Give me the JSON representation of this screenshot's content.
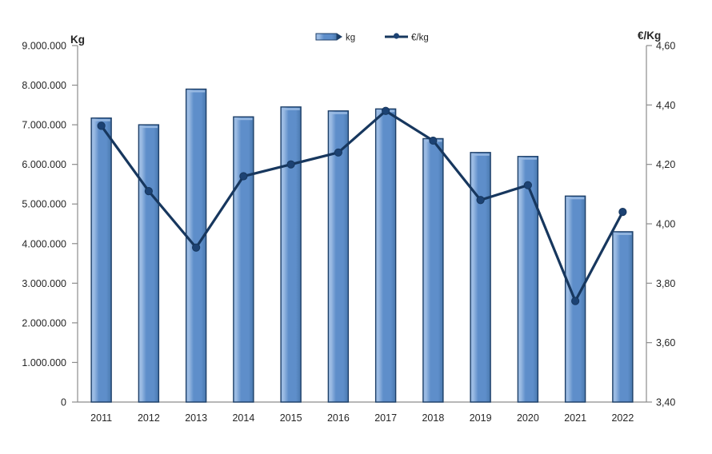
{
  "chart_data": {
    "type": "bar+line",
    "categories": [
      "2011",
      "2012",
      "2013",
      "2014",
      "2015",
      "2016",
      "2017",
      "2018",
      "2019",
      "2020",
      "2021",
      "2022"
    ],
    "series": [
      {
        "name": "kg",
        "type": "bar",
        "axis": "left",
        "values": [
          7170000,
          7000000,
          7900000,
          7200000,
          7450000,
          7350000,
          7400000,
          6650000,
          6300000,
          6200000,
          5200000,
          4300000
        ]
      },
      {
        "name": "€/kg",
        "type": "line",
        "axis": "right",
        "values": [
          4.33,
          4.11,
          3.92,
          4.16,
          4.2,
          4.24,
          4.38,
          4.28,
          4.08,
          4.13,
          3.74,
          4.04
        ]
      }
    ],
    "left_axis": {
      "title": "Kg",
      "min": 0,
      "max": 9000000,
      "step": 1000000,
      "tick_labels": [
        "0",
        "1.000.000",
        "2.000.000",
        "3.000.000",
        "4.000.000",
        "5.000.000",
        "6.000.000",
        "7.000.000",
        "8.000.000",
        "9.000.000"
      ]
    },
    "right_axis": {
      "title": "€/Kg",
      "min": 3.4,
      "max": 4.6,
      "step": 0.2,
      "tick_labels": [
        "3,40",
        "3,60",
        "3,80",
        "4,00",
        "4,20",
        "4,40",
        "4,60"
      ]
    },
    "grid": false,
    "legend_position": "top-center",
    "colors": {
      "bar_fill": "#5E8ECA",
      "bar_fill_light": "#9BBBE3",
      "bar_fill_dark": "#4A79AE",
      "bar_border": "#1D3F68",
      "line": "#17375E",
      "marker": "#1C4273",
      "axis": "#8C8C8C",
      "text": "#262626"
    }
  }
}
